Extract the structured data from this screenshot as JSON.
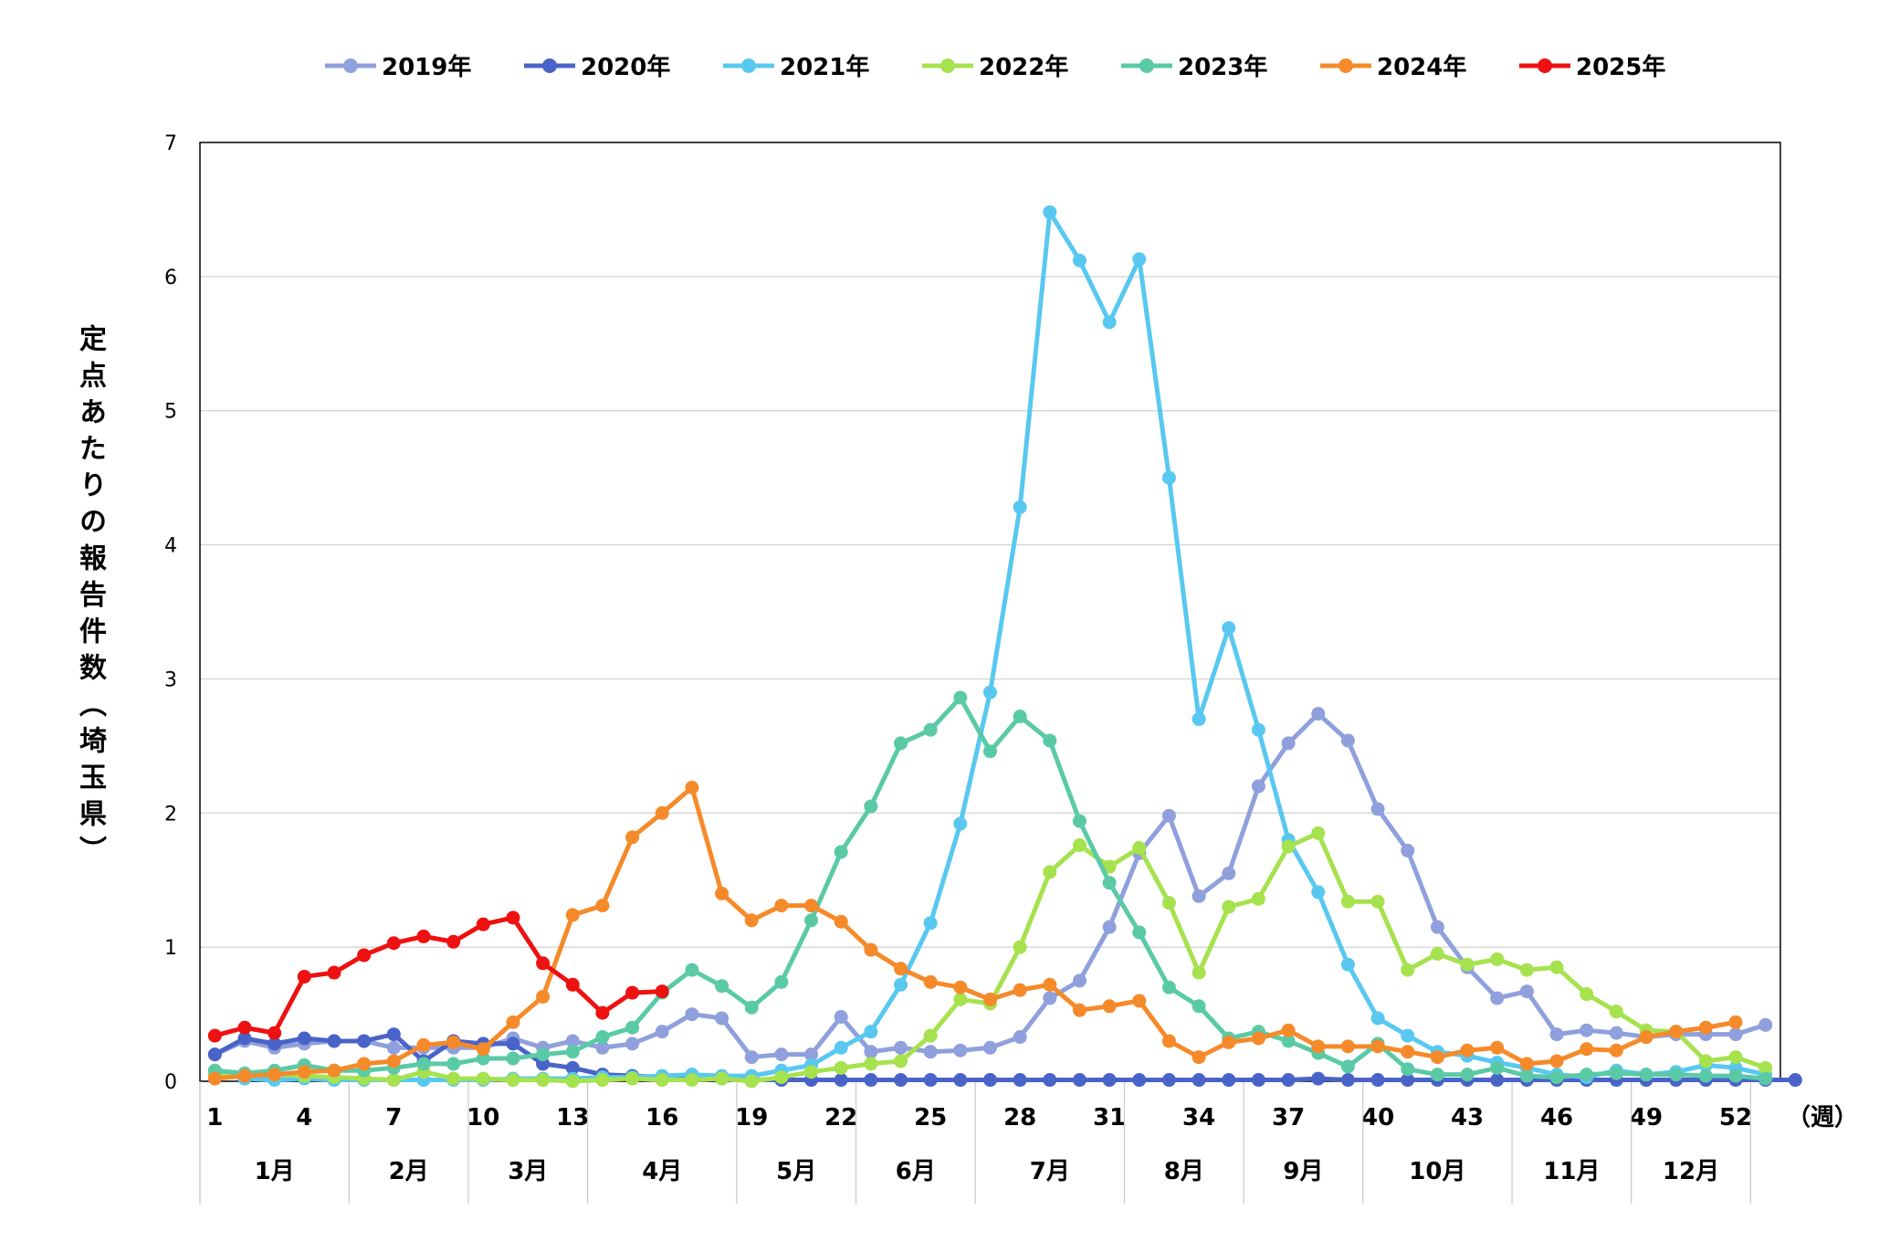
{
  "chart_data": {
    "type": "line",
    "ylabel": "定点あたりの報告件数（埼玉県）",
    "xunit": "（週）",
    "ylim": [
      0,
      7
    ],
    "yticks": [
      0,
      1,
      2,
      3,
      4,
      5,
      6,
      7
    ],
    "xticks": [
      1,
      4,
      7,
      10,
      13,
      16,
      19,
      22,
      25,
      28,
      31,
      34,
      37,
      40,
      43,
      46,
      49,
      52
    ],
    "grid": "horizontal",
    "legend": "top",
    "months": [
      {
        "label": "1月",
        "start": 0.5,
        "end": 5.5
      },
      {
        "label": "2月",
        "start": 5.5,
        "end": 9.5
      },
      {
        "label": "3月",
        "start": 9.5,
        "end": 13.5
      },
      {
        "label": "4月",
        "start": 13.5,
        "end": 18.5
      },
      {
        "label": "5月",
        "start": 18.5,
        "end": 22.5
      },
      {
        "label": "6月",
        "start": 22.5,
        "end": 26.5
      },
      {
        "label": "7月",
        "start": 26.5,
        "end": 31.5
      },
      {
        "label": "8月",
        "start": 31.5,
        "end": 35.5
      },
      {
        "label": "9月",
        "start": 35.5,
        "end": 39.5
      },
      {
        "label": "10月",
        "start": 39.5,
        "end": 44.5
      },
      {
        "label": "11月",
        "start": 44.5,
        "end": 48.5
      },
      {
        "label": "12月",
        "start": 48.5,
        "end": 52.5
      }
    ],
    "series": [
      {
        "name": "2019年",
        "color": "#8FA0DC",
        "start": 1,
        "values": [
          0.2,
          0.3,
          0.25,
          0.28,
          0.3,
          0.3,
          0.25,
          0.25,
          0.25,
          0.25,
          0.32,
          0.25,
          0.3,
          0.25,
          0.28,
          0.37,
          0.5,
          0.47,
          0.18,
          0.2,
          0.2,
          0.48,
          0.22,
          0.25,
          0.22,
          0.23,
          0.25,
          0.33,
          0.62,
          0.75,
          1.15,
          1.7,
          1.98,
          1.38,
          1.55,
          2.2,
          2.52,
          2.74,
          2.54,
          2.03,
          1.72,
          1.15,
          0.85,
          0.62,
          0.67,
          0.35,
          0.38,
          0.36,
          0.33,
          0.35,
          0.35,
          0.35,
          0.42
        ]
      },
      {
        "name": "2020年",
        "color": "#4A63C8",
        "start": 1,
        "values": [
          0.2,
          0.32,
          0.28,
          0.32,
          0.3,
          0.3,
          0.35,
          0.15,
          0.3,
          0.28,
          0.28,
          0.13,
          0.1,
          0.05,
          0.04,
          0.03,
          0.02,
          0.02,
          0.01,
          0.01,
          0.01,
          0.01,
          0.01,
          0.01,
          0.01,
          0.01,
          0.01,
          0.01,
          0.01,
          0.01,
          0.01,
          0.01,
          0.01,
          0.01,
          0.01,
          0.01,
          0.01,
          0.02,
          0.01,
          0.01,
          0.01,
          0.01,
          0.01,
          0.01,
          0.01,
          0.01,
          0.01,
          0.01,
          0.01,
          0.01,
          0.01,
          0.01,
          0.01,
          0.01
        ]
      },
      {
        "name": "2021年",
        "color": "#58C8F0",
        "start": 1,
        "values": [
          0.07,
          0.02,
          0.01,
          0.02,
          0.01,
          0.01,
          0.01,
          0.01,
          0.01,
          0.01,
          0.02,
          0.02,
          0.02,
          0.03,
          0.03,
          0.04,
          0.05,
          0.04,
          0.04,
          0.08,
          0.12,
          0.25,
          0.37,
          0.72,
          1.18,
          1.92,
          2.9,
          4.28,
          6.48,
          6.12,
          5.66,
          6.13,
          4.5,
          2.7,
          3.38,
          2.62,
          1.8,
          1.41,
          0.87,
          0.47,
          0.34,
          0.22,
          0.19,
          0.14,
          0.1,
          0.05,
          0.03,
          0.08,
          0.05,
          0.07,
          0.12,
          0.1,
          0.05
        ]
      },
      {
        "name": "2022年",
        "color": "#A6E24E",
        "start": 1,
        "values": [
          0.05,
          0.05,
          0.05,
          0.04,
          0.03,
          0.02,
          0.01,
          0.07,
          0.02,
          0.02,
          0.01,
          0.01,
          0.0,
          0.01,
          0.02,
          0.01,
          0.01,
          0.02,
          0.0,
          0.03,
          0.07,
          0.1,
          0.13,
          0.15,
          0.34,
          0.61,
          0.58,
          1.0,
          1.56,
          1.76,
          1.6,
          1.74,
          1.33,
          0.81,
          1.3,
          1.36,
          1.75,
          1.85,
          1.34,
          1.34,
          0.83,
          0.95,
          0.87,
          0.91,
          0.83,
          0.85,
          0.65,
          0.52,
          0.38,
          0.37,
          0.15,
          0.18,
          0.1
        ]
      },
      {
        "name": "2023年",
        "color": "#5ACAA6",
        "start": 1,
        "values": [
          0.08,
          0.06,
          0.08,
          0.12,
          0.08,
          0.08,
          0.1,
          0.13,
          0.13,
          0.17,
          0.17,
          0.2,
          0.22,
          0.33,
          0.4,
          0.66,
          0.83,
          0.71,
          0.55,
          0.74,
          1.2,
          1.71,
          2.05,
          2.52,
          2.62,
          2.86,
          2.46,
          2.72,
          2.54,
          1.94,
          1.48,
          1.11,
          0.7,
          0.56,
          0.32,
          0.37,
          0.3,
          0.21,
          0.11,
          0.28,
          0.09,
          0.05,
          0.05,
          0.1,
          0.04,
          0.03,
          0.05,
          0.06,
          0.05,
          0.05,
          0.04,
          0.04,
          0.02
        ]
      },
      {
        "name": "2024年",
        "color": "#F58A2A",
        "start": 1,
        "values": [
          0.02,
          0.04,
          0.05,
          0.07,
          0.08,
          0.13,
          0.15,
          0.27,
          0.29,
          0.24,
          0.44,
          0.63,
          1.24,
          1.31,
          1.82,
          2.0,
          2.19,
          1.4,
          1.2,
          1.31,
          1.31,
          1.19,
          0.98,
          0.84,
          0.74,
          0.7,
          0.61,
          0.68,
          0.72,
          0.53,
          0.56,
          0.6,
          0.3,
          0.18,
          0.29,
          0.32,
          0.38,
          0.26,
          0.26,
          0.26,
          0.22,
          0.18,
          0.23,
          0.25,
          0.13,
          0.15,
          0.24,
          0.23,
          0.33,
          0.37,
          0.4,
          0.44
        ]
      },
      {
        "name": "2025年",
        "color": "#EE1111",
        "start": 1,
        "values": [
          0.34,
          0.4,
          0.36,
          0.78,
          0.81,
          0.94,
          1.03,
          1.08,
          1.04,
          1.17,
          1.22,
          0.88,
          0.72,
          0.51,
          0.66,
          0.67
        ]
      }
    ]
  }
}
